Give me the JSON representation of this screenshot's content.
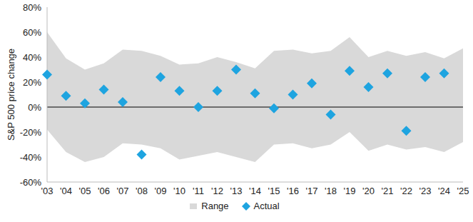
{
  "chart_data": {
    "type": "range_scatter",
    "y_label": "S&P 500 price change",
    "categories": [
      "'03",
      "'04",
      "'05",
      "'06",
      "'07",
      "'08",
      "'09",
      "'10",
      "'11",
      "'12",
      "'13",
      "'14",
      "'15",
      "'16",
      "'17",
      "'18",
      "'19",
      "'20",
      "'21",
      "'22",
      "'23",
      "'24",
      "'25"
    ],
    "series": [
      {
        "name": "Range",
        "type": "range_area",
        "color": "#d9d9d9",
        "values": [
          [
            -18,
            60
          ],
          [
            -36,
            39
          ],
          [
            -44,
            30
          ],
          [
            -40,
            35
          ],
          [
            -29,
            46
          ],
          [
            -30,
            45
          ],
          [
            -33,
            41
          ],
          [
            -42,
            34
          ],
          [
            -39,
            35
          ],
          [
            -36,
            40
          ],
          [
            -40,
            36
          ],
          [
            -44,
            31
          ],
          [
            -30,
            45
          ],
          [
            -29,
            46
          ],
          [
            -33,
            43
          ],
          [
            -30,
            45
          ],
          [
            -20,
            56
          ],
          [
            -35,
            40
          ],
          [
            -30,
            45
          ],
          [
            -34,
            41
          ],
          [
            -32,
            44
          ],
          [
            -36,
            39
          ],
          [
            -28,
            47
          ]
        ]
      },
      {
        "name": "Actual",
        "type": "scatter",
        "marker": "diamond",
        "color": "#1ea4e0",
        "values": [
          26,
          9,
          3,
          14,
          4,
          -38,
          24,
          13,
          0,
          13,
          30,
          11,
          -1,
          10,
          19,
          -6,
          29,
          16,
          27,
          -19,
          24,
          27,
          null
        ]
      }
    ],
    "ylim": [
      -60,
      80
    ],
    "yticks": [
      {
        "value": -60,
        "label": "-60%"
      },
      {
        "value": -40,
        "label": "-40%"
      },
      {
        "value": -20,
        "label": "-20%"
      },
      {
        "value": 0,
        "label": "0%"
      },
      {
        "value": 20,
        "label": "20%"
      },
      {
        "value": 40,
        "label": "40%"
      },
      {
        "value": 60,
        "label": "60%"
      },
      {
        "value": 80,
        "label": "80%"
      }
    ],
    "grid": false,
    "legend": "bottom"
  }
}
